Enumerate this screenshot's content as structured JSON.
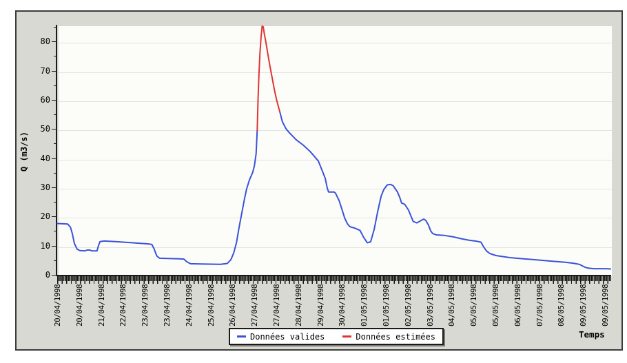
{
  "chart_data": {
    "type": "line",
    "title": "",
    "y_axis_title": "Q (m3/s)",
    "x_axis_title": "Temps",
    "x_unit": "days since 20/04/1998 00:00",
    "x_range_days": 20,
    "y_max": 85.7,
    "ylim": [
      0,
      85.7
    ],
    "y_ticks": [
      0,
      10,
      20,
      30,
      40,
      50,
      60,
      70,
      80
    ],
    "y_minor_step": 5,
    "grid": "horizontal",
    "legend_position": "bottom",
    "x_tick_labels": [
      "20/04/1998",
      "20/04/1998",
      "21/04/1998",
      "22/04/1998",
      "23/04/1998",
      "23/04/1998",
      "24/04/1998",
      "25/04/1998",
      "26/04/1998",
      "27/04/1998",
      "27/04/1998",
      "28/04/1998",
      "29/04/1998",
      "30/04/1998",
      "01/05/1998",
      "01/05/1998",
      "02/05/1998",
      "03/05/1998",
      "04/05/1998",
      "05/05/1998",
      "05/05/1998",
      "06/05/1998",
      "07/05/1998",
      "08/05/1998",
      "09/05/1998",
      "09/05/1998"
    ],
    "series": [
      {
        "name": "Données valides",
        "role": "valid-data",
        "color": "#3a52d9",
        "segments": [
          [
            [
              0.0,
              17.6
            ],
            [
              0.38,
              17.4
            ],
            [
              0.48,
              16.3
            ],
            [
              0.55,
              14.0
            ],
            [
              0.62,
              10.8
            ],
            [
              0.72,
              8.8
            ],
            [
              0.82,
              8.3
            ],
            [
              1.0,
              8.2
            ],
            [
              1.08,
              8.5
            ],
            [
              1.18,
              8.5
            ],
            [
              1.26,
              8.2
            ],
            [
              1.44,
              8.2
            ],
            [
              1.5,
              10.2
            ],
            [
              1.55,
              11.4
            ],
            [
              1.7,
              11.6
            ],
            [
              2.1,
              11.4
            ],
            [
              2.7,
              11.0
            ],
            [
              3.3,
              10.6
            ],
            [
              3.42,
              10.4
            ],
            [
              3.5,
              9.0
            ],
            [
              3.6,
              6.5
            ],
            [
              3.7,
              5.7
            ],
            [
              4.0,
              5.6
            ],
            [
              4.4,
              5.5
            ],
            [
              4.58,
              5.4
            ],
            [
              4.68,
              4.5
            ],
            [
              4.82,
              3.8
            ],
            [
              5.2,
              3.7
            ],
            [
              5.9,
              3.6
            ],
            [
              6.15,
              3.9
            ],
            [
              6.28,
              5.2
            ],
            [
              6.38,
              7.5
            ],
            [
              6.48,
              11.0
            ],
            [
              6.57,
              16.0
            ],
            [
              6.67,
              21.0
            ],
            [
              6.77,
              26.0
            ],
            [
              6.85,
              29.5
            ],
            [
              6.95,
              32.5
            ],
            [
              7.07,
              35.2
            ],
            [
              7.13,
              37.5
            ],
            [
              7.19,
              41.5
            ],
            [
              7.23,
              49.5
            ]
          ],
          [
            [
              8.05,
              55.8
            ],
            [
              8.14,
              52.5
            ],
            [
              8.27,
              50.1
            ],
            [
              8.39,
              48.7
            ],
            [
              8.64,
              46.3
            ],
            [
              8.89,
              44.5
            ],
            [
              9.14,
              42.3
            ],
            [
              9.26,
              41.0
            ],
            [
              9.44,
              39.0
            ],
            [
              9.59,
              35.5
            ],
            [
              9.69,
              33.0
            ],
            [
              9.76,
              29.8
            ],
            [
              9.81,
              28.4
            ],
            [
              10.01,
              28.4
            ],
            [
              10.06,
              28.0
            ],
            [
              10.19,
              25.5
            ],
            [
              10.31,
              22.0
            ],
            [
              10.39,
              19.5
            ],
            [
              10.49,
              17.5
            ],
            [
              10.58,
              16.5
            ],
            [
              10.76,
              16.0
            ],
            [
              10.95,
              15.2
            ],
            [
              11.08,
              12.8
            ],
            [
              11.21,
              11.0
            ],
            [
              11.33,
              11.3
            ],
            [
              11.46,
              15.6
            ],
            [
              11.58,
              21.4
            ],
            [
              11.71,
              27.0
            ],
            [
              11.81,
              29.3
            ],
            [
              11.93,
              30.8
            ],
            [
              12.05,
              31.0
            ],
            [
              12.15,
              30.5
            ],
            [
              12.3,
              28.4
            ],
            [
              12.38,
              26.6
            ],
            [
              12.45,
              24.6
            ],
            [
              12.56,
              24.2
            ],
            [
              12.7,
              22.2
            ],
            [
              12.8,
              19.9
            ],
            [
              12.87,
              18.3
            ],
            [
              13.0,
              17.8
            ],
            [
              13.17,
              18.7
            ],
            [
              13.25,
              19.1
            ],
            [
              13.32,
              18.7
            ],
            [
              13.42,
              17.1
            ],
            [
              13.5,
              15.1
            ],
            [
              13.57,
              14.2
            ],
            [
              13.7,
              13.7
            ],
            [
              14.0,
              13.5
            ],
            [
              14.32,
              13.0
            ],
            [
              14.6,
              12.4
            ],
            [
              14.87,
              11.9
            ],
            [
              15.17,
              11.5
            ],
            [
              15.32,
              11.2
            ],
            [
              15.42,
              9.5
            ],
            [
              15.52,
              8.2
            ],
            [
              15.64,
              7.3
            ],
            [
              15.86,
              6.6
            ],
            [
              16.36,
              5.9
            ],
            [
              16.86,
              5.5
            ],
            [
              17.36,
              5.1
            ],
            [
              17.86,
              4.7
            ],
            [
              18.36,
              4.3
            ],
            [
              18.65,
              4.0
            ],
            [
              18.88,
              3.6
            ],
            [
              18.98,
              3.1
            ],
            [
              19.08,
              2.6
            ],
            [
              19.2,
              2.3
            ],
            [
              19.4,
              2.1
            ],
            [
              19.85,
              2.1
            ],
            [
              20.0,
              2.0
            ]
          ]
        ]
      },
      {
        "name": "Données estimées",
        "role": "estimated-data",
        "color": "#e03434",
        "segments": [
          [
            [
              7.23,
              49.5
            ],
            [
              7.26,
              60.0
            ],
            [
              7.29,
              68.0
            ],
            [
              7.33,
              76.0
            ],
            [
              7.37,
              81.5
            ],
            [
              7.41,
              85.3
            ],
            [
              7.45,
              85.0
            ],
            [
              7.49,
              82.5
            ],
            [
              7.55,
              79.5
            ],
            [
              7.61,
              76.0
            ],
            [
              7.69,
              71.5
            ],
            [
              7.77,
              67.5
            ],
            [
              7.85,
              63.5
            ],
            [
              7.93,
              60.0
            ],
            [
              8.0,
              57.5
            ],
            [
              8.05,
              55.8
            ]
          ]
        ]
      }
    ],
    "colors": {
      "valid_series": "#3a52d9",
      "estimated_series": "#e03434",
      "panel_background": "#d9d9d3",
      "plot_background": "#fcfdf9",
      "gridline": "#e3e3e3",
      "axis": "#1a1a1a"
    }
  }
}
